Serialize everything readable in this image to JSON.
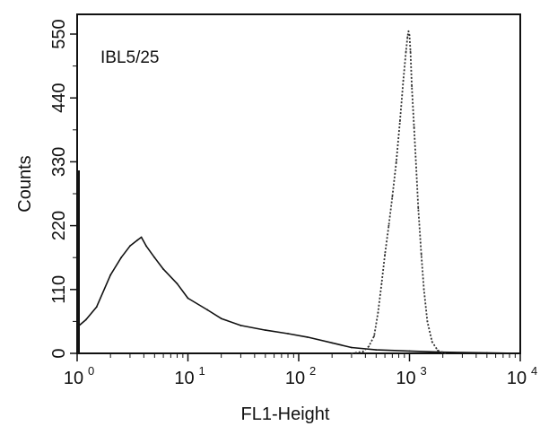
{
  "chart_data": {
    "type": "line",
    "title": "",
    "annotation": "IBL5/25",
    "xlabel": "FL1-Height",
    "ylabel": "Counts",
    "x_scale": "log",
    "xlim": [
      1,
      10000
    ],
    "ylim": [
      0,
      550
    ],
    "x_ticks": [
      {
        "base": "10",
        "exp": "0",
        "value": 1
      },
      {
        "base": "10",
        "exp": "1",
        "value": 10
      },
      {
        "base": "10",
        "exp": "2",
        "value": 100
      },
      {
        "base": "10",
        "exp": "3",
        "value": 1000
      },
      {
        "base": "10",
        "exp": "4",
        "value": 10000
      }
    ],
    "y_ticks": [
      "0",
      "110",
      "220",
      "330",
      "440",
      "550"
    ],
    "y_tick_values": [
      0,
      110,
      220,
      330,
      440,
      550
    ],
    "grid": false,
    "series": [
      {
        "style": "solid",
        "color": "#111111",
        "x": [
          1.0,
          1.2,
          1.5,
          2.0,
          2.5,
          3.0,
          3.5,
          3.8,
          4.2,
          5.0,
          6.0,
          8.0,
          10,
          15,
          20,
          30,
          50,
          80,
          120,
          200,
          300,
          500,
          1000,
          2000,
          5000,
          10000
        ],
        "y": [
          45,
          58,
          80,
          135,
          165,
          185,
          195,
          200,
          185,
          165,
          145,
          120,
          95,
          75,
          60,
          48,
          40,
          34,
          28,
          18,
          10,
          6,
          4,
          2,
          1,
          0
        ]
      },
      {
        "style": "dotted",
        "color": "#333333",
        "x": [
          300,
          380,
          430,
          480,
          520,
          560,
          600,
          650,
          700,
          760,
          820,
          880,
          930,
          960,
          980,
          1000,
          1020,
          1050,
          1100,
          1150,
          1200,
          1280,
          1350,
          1450,
          1600,
          1800,
          2100
        ],
        "y": [
          0,
          3,
          12,
          30,
          70,
          120,
          170,
          220,
          270,
          330,
          400,
          470,
          520,
          545,
          555,
          548,
          520,
          460,
          390,
          320,
          250,
          170,
          110,
          55,
          20,
          5,
          0
        ]
      }
    ]
  }
}
